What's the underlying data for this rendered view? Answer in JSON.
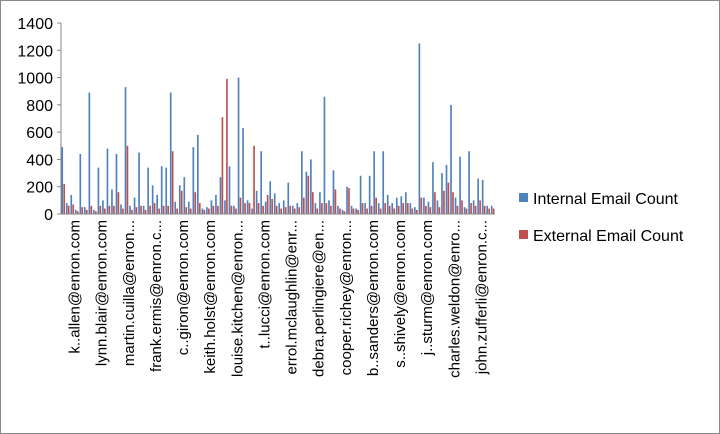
{
  "chart_data": {
    "type": "bar",
    "title": "",
    "xlabel": "",
    "ylabel": "",
    "ylim": [
      0,
      1400
    ],
    "yticks": [
      0,
      200,
      400,
      600,
      800,
      1000,
      1200,
      1400
    ],
    "grid": false,
    "legend_position": "right",
    "colors": {
      "internal": "#4F81BD",
      "external": "#C0504D"
    },
    "tick_labels": [
      "k..allen@enron.com",
      "lynn.blair@enron.com",
      "martin.cuilla@enron...",
      "frank.ermis@enron.c...",
      "c..giron@enron.com",
      "keith.holst@enron.com",
      "louise.kitchen@enron...",
      "t..lucci@enron.com",
      "errol.mclaughlin@enr...",
      "debra.perlingiere@en...",
      "cooper.richey@enron...",
      "b..sanders@enron.com",
      "s..shively@enron.com",
      "j..sturm@enron.com",
      "charles.weldon@enro...",
      "john.zufferli@enron.c..."
    ],
    "series": [
      {
        "name": "Internal Email Count",
        "values": [
          490,
          80,
          140,
          30,
          440,
          50,
          890,
          30,
          340,
          100,
          480,
          180,
          440,
          70,
          930,
          60,
          120,
          450,
          60,
          340,
          210,
          140,
          350,
          340,
          890,
          90,
          210,
          270,
          90,
          490,
          580,
          40,
          50,
          100,
          140,
          270,
          100,
          350,
          60,
          1000,
          630,
          100,
          40,
          170,
          460,
          90,
          240,
          150,
          80,
          100,
          230,
          60,
          80,
          460,
          310,
          400,
          80,
          160,
          860,
          100,
          320,
          60,
          30,
          200,
          60,
          40,
          280,
          80,
          280,
          460,
          80,
          460,
          140,
          80,
          120,
          130,
          160,
          80,
          50,
          1250,
          120,
          90,
          380,
          100,
          300,
          360,
          800,
          120,
          420,
          50,
          460,
          100,
          260,
          250,
          60,
          60
        ]
      },
      {
        "name": "External Email Count",
        "values": [
          220,
          60,
          70,
          20,
          50,
          30,
          60,
          20,
          60,
          40,
          60,
          60,
          160,
          40,
          500,
          30,
          50,
          60,
          30,
          60,
          80,
          40,
          60,
          60,
          460,
          40,
          170,
          50,
          40,
          160,
          80,
          30,
          40,
          60,
          60,
          710,
          990,
          60,
          40,
          120,
          80,
          80,
          500,
          80,
          60,
          140,
          110,
          60,
          40,
          50,
          60,
          40,
          50,
          120,
          280,
          160,
          40,
          80,
          80,
          60,
          180,
          40,
          20,
          190,
          40,
          30,
          80,
          40,
          60,
          120,
          40,
          80,
          60,
          40,
          60,
          80,
          80,
          40,
          30,
          120,
          60,
          50,
          160,
          50,
          170,
          230,
          160,
          60,
          100,
          40,
          80,
          60,
          100,
          60,
          40,
          40
        ]
      }
    ]
  }
}
